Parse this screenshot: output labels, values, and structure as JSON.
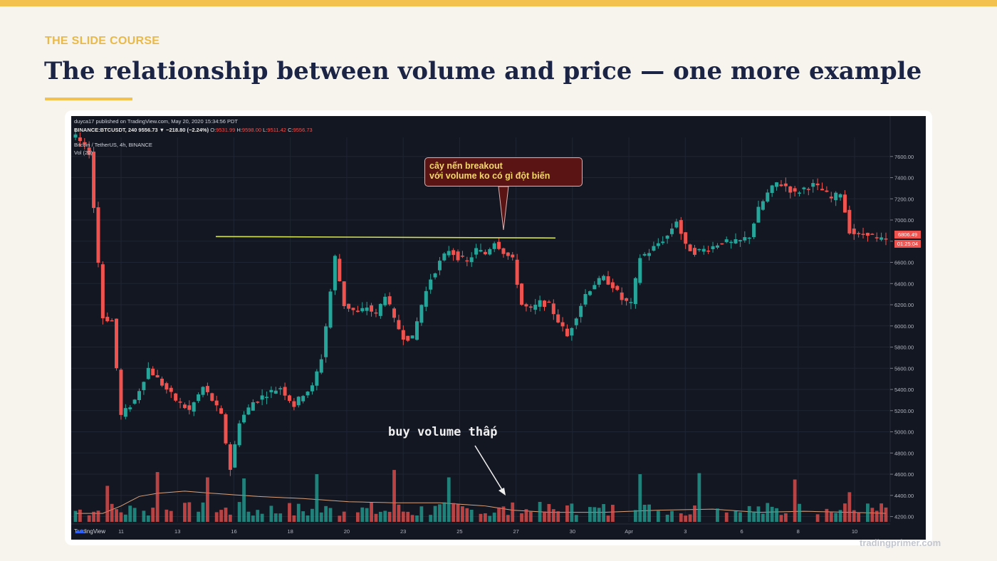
{
  "slide": {
    "kicker": "THE SLIDE COURSE",
    "title": "The relationship between volume and price — one more example",
    "footer": "tradingprimer.com",
    "accent_color": "#f2c14e",
    "title_color": "#1b2444"
  },
  "tradingview": {
    "header_line1": "duyca17 published on TradingView.com, May 20, 2020 15:34:56 PDT",
    "header_line2_prefix": "BINANCE:BTCUSDT, 240  9556.73  ▼ −218.80 (−2.24%)",
    "ohlc": {
      "o_label": "O:",
      "o": "9531.99",
      "h_label": "H:",
      "h": "9598.00",
      "l_label": "L:",
      "l": "9511.42",
      "c_label": "C:",
      "c": "9556.73"
    },
    "symbol_line": "Bitcoin / TetherUS, 4h, BINANCE",
    "indicator": "Vol (20)",
    "last_price_label": "6806.49",
    "countdown_label": "01:25:04",
    "logo_text": "TradingView",
    "logo_icon": "tradingview-cloud-icon"
  },
  "annotations": {
    "callout_line1": "cây nến breakout",
    "callout_line2": "với volume ko có gì đột biến",
    "volume_note": "buy volume thấp"
  },
  "chart_data": {
    "type": "candlestick",
    "title": "",
    "xlabel": "",
    "ylabel": "",
    "ylim": [
      4150,
      7780
    ],
    "y_ticks": [
      4200,
      4400,
      4600,
      4800,
      5000,
      5200,
      5400,
      5600,
      5800,
      6000,
      6200,
      6400,
      6600,
      6800,
      7000,
      7200,
      7400,
      7600
    ],
    "x_ticks": [
      "11",
      "13",
      "16",
      "18",
      "20",
      "23",
      "25",
      "27",
      "30",
      "Apr",
      "3",
      "6",
      "8",
      "10"
    ],
    "resistance_level": 6790,
    "grid": true,
    "colors": {
      "up": "#26a69a",
      "down": "#ef5350",
      "background": "#131722",
      "resistance": "#d4e157",
      "volume_ma": "#d9a07a"
    },
    "price_path": [
      [
        0,
        7780
      ],
      [
        3,
        7640
      ],
      [
        6,
        6080
      ],
      [
        8,
        6050
      ],
      [
        10,
        5150
      ],
      [
        13,
        5300
      ],
      [
        16,
        5600
      ],
      [
        19,
        5450
      ],
      [
        22,
        5300
      ],
      [
        25,
        5200
      ],
      [
        28,
        5420
      ],
      [
        30,
        5300
      ],
      [
        32,
        5150
      ],
      [
        34,
        4650
      ],
      [
        36,
        5100
      ],
      [
        39,
        5280
      ],
      [
        42,
        5360
      ],
      [
        45,
        5420
      ],
      [
        48,
        5250
      ],
      [
        50,
        5360
      ],
      [
        52,
        5420
      ],
      [
        54,
        5700
      ],
      [
        55,
        6000
      ],
      [
        57,
        6650
      ],
      [
        59,
        6200
      ],
      [
        62,
        6120
      ],
      [
        64,
        6180
      ],
      [
        66,
        6100
      ],
      [
        68,
        6300
      ],
      [
        70,
        6050
      ],
      [
        72,
        5900
      ],
      [
        74,
        5880
      ],
      [
        76,
        6200
      ],
      [
        78,
        6450
      ],
      [
        80,
        6600
      ],
      [
        82,
        6720
      ],
      [
        84,
        6650
      ],
      [
        86,
        6600
      ],
      [
        88,
        6720
      ],
      [
        90,
        6680
      ],
      [
        92,
        6800
      ],
      [
        94,
        6700
      ],
      [
        96,
        6620
      ],
      [
        98,
        6200
      ],
      [
        100,
        6150
      ],
      [
        102,
        6220
      ],
      [
        104,
        6200
      ],
      [
        106,
        6050
      ],
      [
        108,
        5900
      ],
      [
        110,
        6100
      ],
      [
        112,
        6300
      ],
      [
        114,
        6400
      ],
      [
        116,
        6450
      ],
      [
        118,
        6380
      ],
      [
        120,
        6250
      ],
      [
        122,
        6200
      ],
      [
        124,
        6650
      ],
      [
        126,
        6700
      ],
      [
        128,
        6780
      ],
      [
        130,
        6850
      ],
      [
        132,
        7000
      ],
      [
        134,
        6750
      ],
      [
        136,
        6700
      ],
      [
        138,
        6720
      ],
      [
        140,
        6750
      ],
      [
        142,
        6800
      ],
      [
        144,
        6780
      ],
      [
        146,
        6800
      ],
      [
        148,
        6850
      ],
      [
        150,
        7100
      ],
      [
        152,
        7250
      ],
      [
        154,
        7350
      ],
      [
        156,
        7320
      ],
      [
        158,
        7250
      ],
      [
        160,
        7300
      ],
      [
        162,
        7330
      ],
      [
        164,
        7280
      ],
      [
        166,
        7200
      ],
      [
        168,
        7260
      ],
      [
        170,
        6900
      ],
      [
        172,
        6850
      ],
      [
        174,
        6880
      ],
      [
        176,
        6820
      ],
      [
        178,
        6806
      ]
    ],
    "volume_ma_path": [
      [
        0,
        4230
      ],
      [
        6,
        4230
      ],
      [
        10,
        4300
      ],
      [
        14,
        4390
      ],
      [
        18,
        4420
      ],
      [
        24,
        4440
      ],
      [
        30,
        4420
      ],
      [
        40,
        4390
      ],
      [
        50,
        4370
      ],
      [
        60,
        4340
      ],
      [
        70,
        4330
      ],
      [
        80,
        4330
      ],
      [
        90,
        4300
      ],
      [
        96,
        4260
      ],
      [
        104,
        4240
      ],
      [
        116,
        4240
      ],
      [
        128,
        4260
      ],
      [
        140,
        4270
      ],
      [
        150,
        4240
      ],
      [
        160,
        4250
      ],
      [
        170,
        4240
      ],
      [
        178,
        4230
      ]
    ],
    "volume_spikes": [
      [
        7,
        4490
      ],
      [
        18,
        4620
      ],
      [
        29,
        4570
      ],
      [
        37,
        4560
      ],
      [
        53,
        4600
      ],
      [
        70,
        4640
      ],
      [
        82,
        4570
      ],
      [
        124,
        4600
      ],
      [
        137,
        4610
      ],
      [
        158,
        4550
      ],
      [
        170,
        4430
      ]
    ]
  }
}
